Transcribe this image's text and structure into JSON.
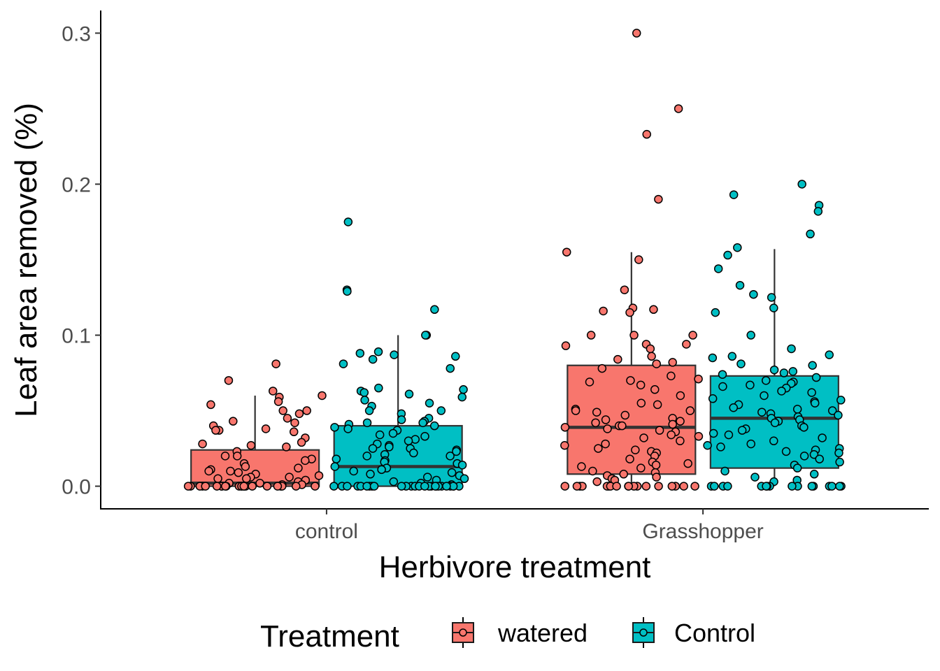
{
  "chart_data": {
    "type": "boxplot",
    "xlabel": "Herbivore treatment",
    "ylabel": "Leaf area removed (%)",
    "ylim": [
      -0.015,
      0.315
    ],
    "y_ticks": [
      "0.0",
      "0.1",
      "0.2",
      "0.3"
    ],
    "grid": false,
    "categories": [
      "control",
      "Grasshopper"
    ],
    "legend": {
      "title": "Treatment",
      "position": "bottom",
      "items": [
        "watered",
        "Control"
      ]
    },
    "series": [
      {
        "name": "watered",
        "color": "#F8766D",
        "boxes": [
          {
            "category": "control",
            "q1": 0.0,
            "median": 0.002,
            "q3": 0.024,
            "whisker_low": 0.0,
            "whisker_high": 0.06,
            "points": [
              0.081,
              0.07,
              0.063,
              0.06,
              0.059,
              0.056,
              0.054,
              0.05,
              0.05,
              0.048,
              0.045,
              0.043,
              0.042,
              0.04,
              0.038,
              0.037,
              0.037,
              0.036,
              0.032,
              0.029,
              0.028,
              0.027,
              0.026,
              0.023,
              0.02,
              0.02,
              0.018,
              0.017,
              0.015,
              0.013,
              0.012,
              0.011,
              0.01,
              0.01,
              0.009,
              0.008,
              0.007,
              0.006,
              0.006,
              0.005,
              0.005,
              0.004,
              0.003,
              0.002,
              0.002,
              0.001,
              0.001,
              0.0,
              0.0,
              0.0,
              0.0,
              0.0,
              0.0,
              0.0,
              0.0,
              0.0,
              0.0,
              0.0,
              0.0,
              0.0,
              0.0,
              0.0,
              0.0,
              0.0,
              0.0,
              0.0,
              0.0,
              0.0,
              0.0,
              0.0
            ]
          },
          {
            "category": "Grasshopper",
            "q1": 0.008,
            "median": 0.039,
            "q3": 0.08,
            "whisker_low": 0.0,
            "whisker_high": 0.155,
            "points": [
              0.3,
              0.25,
              0.233,
              0.19,
              0.155,
              0.15,
              0.13,
              0.118,
              0.117,
              0.116,
              0.115,
              0.1,
              0.1,
              0.1,
              0.094,
              0.094,
              0.093,
              0.091,
              0.086,
              0.084,
              0.082,
              0.081,
              0.078,
              0.073,
              0.071,
              0.07,
              0.069,
              0.067,
              0.064,
              0.06,
              0.055,
              0.054,
              0.051,
              0.05,
              0.05,
              0.049,
              0.047,
              0.045,
              0.044,
              0.043,
              0.042,
              0.041,
              0.04,
              0.04,
              0.039,
              0.038,
              0.037,
              0.036,
              0.034,
              0.033,
              0.032,
              0.03,
              0.028,
              0.027,
              0.025,
              0.024,
              0.023,
              0.022,
              0.02,
              0.018,
              0.016,
              0.015,
              0.014,
              0.013,
              0.012,
              0.01,
              0.009,
              0.008,
              0.007,
              0.006,
              0.005,
              0.004,
              0.003,
              0.0,
              0.0,
              0.0,
              0.0,
              0.0,
              0.0,
              0.0,
              0.0,
              0.0,
              0.0,
              0.0,
              0.0,
              0.0,
              0.0,
              0.0,
              0.0,
              0.0,
              0.0
            ]
          }
        ]
      },
      {
        "name": "Control",
        "color": "#00BFC4",
        "boxes": [
          {
            "category": "control",
            "q1": 0.0,
            "median": 0.013,
            "q3": 0.04,
            "whisker_low": 0.0,
            "whisker_high": 0.1,
            "points": [
              0.175,
              0.13,
              0.129,
              0.117,
              0.1,
              0.1,
              0.089,
              0.088,
              0.087,
              0.086,
              0.084,
              0.081,
              0.078,
              0.065,
              0.064,
              0.063,
              0.062,
              0.061,
              0.059,
              0.057,
              0.055,
              0.053,
              0.05,
              0.05,
              0.048,
              0.045,
              0.044,
              0.043,
              0.042,
              0.042,
              0.041,
              0.04,
              0.039,
              0.038,
              0.037,
              0.035,
              0.034,
              0.033,
              0.031,
              0.03,
              0.028,
              0.027,
              0.026,
              0.025,
              0.025,
              0.024,
              0.023,
              0.022,
              0.021,
              0.02,
              0.02,
              0.018,
              0.017,
              0.016,
              0.015,
              0.014,
              0.013,
              0.012,
              0.011,
              0.01,
              0.009,
              0.008,
              0.007,
              0.006,
              0.005,
              0.004,
              0.003,
              0.002,
              0.001,
              0.0,
              0.0,
              0.0,
              0.0,
              0.0,
              0.0,
              0.0,
              0.0,
              0.0,
              0.0,
              0.0,
              0.0,
              0.0,
              0.0,
              0.0,
              0.0,
              0.0,
              0.0,
              0.0,
              0.0,
              0.0,
              0.0,
              0.0,
              0.0,
              0.0,
              0.0
            ]
          },
          {
            "category": "Grasshopper",
            "q1": 0.012,
            "median": 0.045,
            "q3": 0.073,
            "whisker_low": 0.0,
            "whisker_high": 0.157,
            "points": [
              0.2,
              0.193,
              0.186,
              0.182,
              0.167,
              0.158,
              0.153,
              0.144,
              0.133,
              0.127,
              0.125,
              0.118,
              0.115,
              0.1,
              0.091,
              0.087,
              0.086,
              0.085,
              0.081,
              0.08,
              0.077,
              0.076,
              0.075,
              0.074,
              0.072,
              0.07,
              0.069,
              0.068,
              0.067,
              0.066,
              0.065,
              0.063,
              0.062,
              0.06,
              0.058,
              0.057,
              0.056,
              0.055,
              0.054,
              0.052,
              0.051,
              0.05,
              0.049,
              0.048,
              0.047,
              0.046,
              0.045,
              0.044,
              0.043,
              0.042,
              0.04,
              0.039,
              0.038,
              0.037,
              0.035,
              0.034,
              0.032,
              0.03,
              0.028,
              0.027,
              0.026,
              0.025,
              0.024,
              0.023,
              0.022,
              0.021,
              0.02,
              0.018,
              0.016,
              0.014,
              0.012,
              0.01,
              0.008,
              0.006,
              0.004,
              0.003,
              0.0,
              0.0,
              0.0,
              0.0,
              0.0,
              0.0,
              0.0,
              0.0,
              0.0,
              0.0,
              0.0,
              0.0,
              0.0,
              0.0,
              0.0,
              0.0
            ]
          }
        ]
      }
    ]
  }
}
